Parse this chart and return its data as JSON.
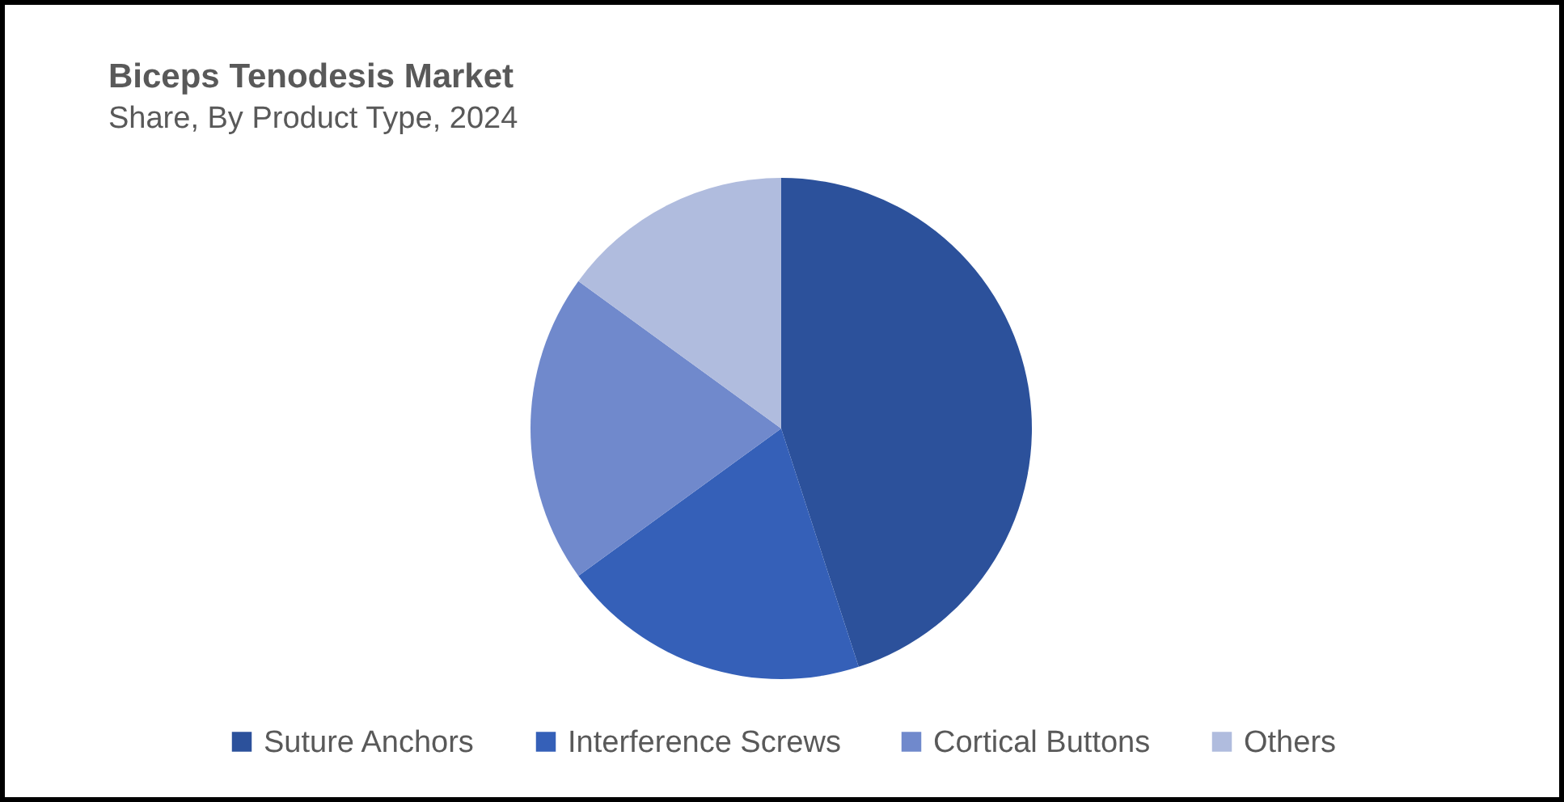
{
  "chart_data": {
    "type": "pie",
    "title": "Biceps Tenodesis Market",
    "subtitle": "Share, By Product Type, 2024",
    "categories": [
      "Suture Anchors",
      "Interference Screws",
      "Cortical Buttons",
      "Others"
    ],
    "values": [
      45,
      20,
      20,
      15
    ],
    "colors": [
      "#2c519b",
      "#3560b8",
      "#7089cc",
      "#b0bcde"
    ],
    "legend": "bottom"
  }
}
